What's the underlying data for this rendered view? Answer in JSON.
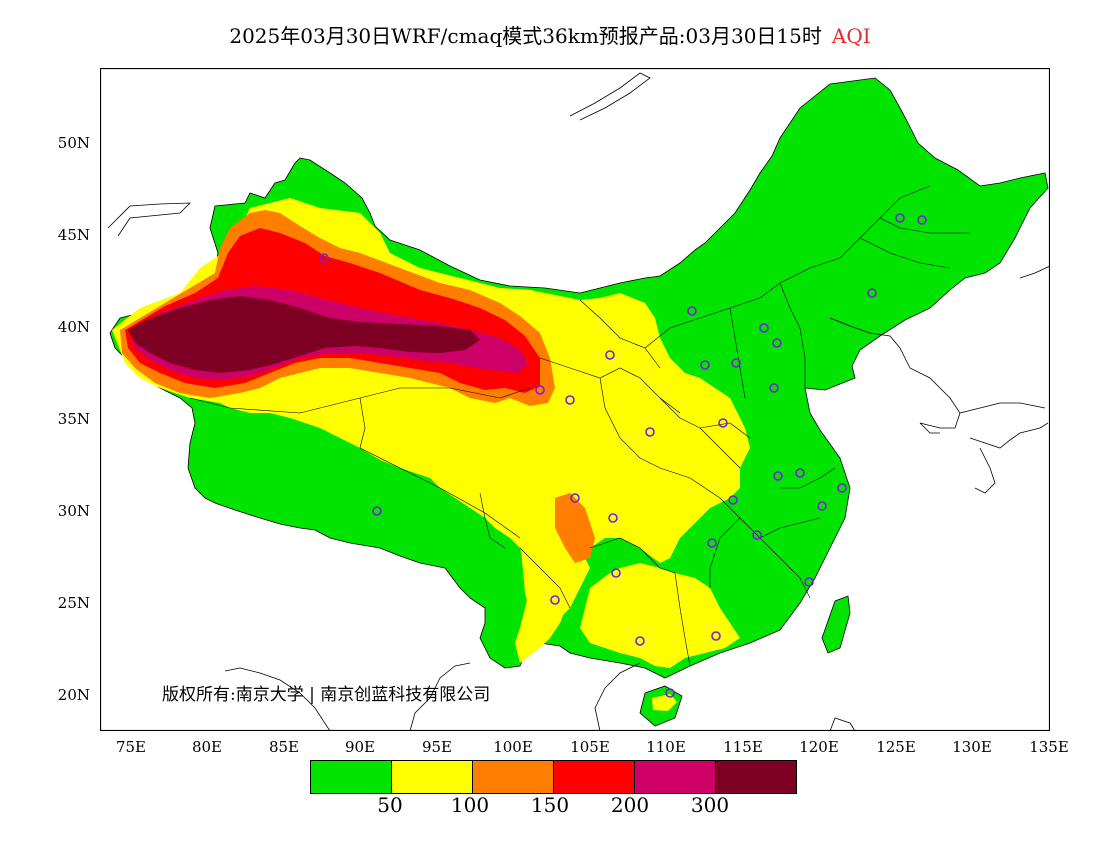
{
  "title": {
    "main": "2025年03月30日WRF/cmaq模式36km预报产品:03月30日15时",
    "tag": "AQI"
  },
  "map": {
    "lat_labels": [
      "50N",
      "45N",
      "40N",
      "35N",
      "30N",
      "25N",
      "20N"
    ],
    "lon_labels": [
      "75E",
      "80E",
      "85E",
      "90E",
      "95E",
      "100E",
      "105E",
      "110E",
      "115E",
      "120E",
      "125E",
      "130E",
      "135E"
    ],
    "copyright": "版权所有:南京大学 | 南京创蓝科技有限公司"
  },
  "legend": {
    "colors": [
      "#00e400",
      "#ffff00",
      "#ff7e00",
      "#ff0000",
      "#cc0066",
      "#7e0023"
    ],
    "labels": [
      "50",
      "100",
      "150",
      "200",
      "300"
    ]
  },
  "colors": {
    "frame": "#000000",
    "station_marker": "#7a1fd6",
    "tag": "#e8262e"
  }
}
